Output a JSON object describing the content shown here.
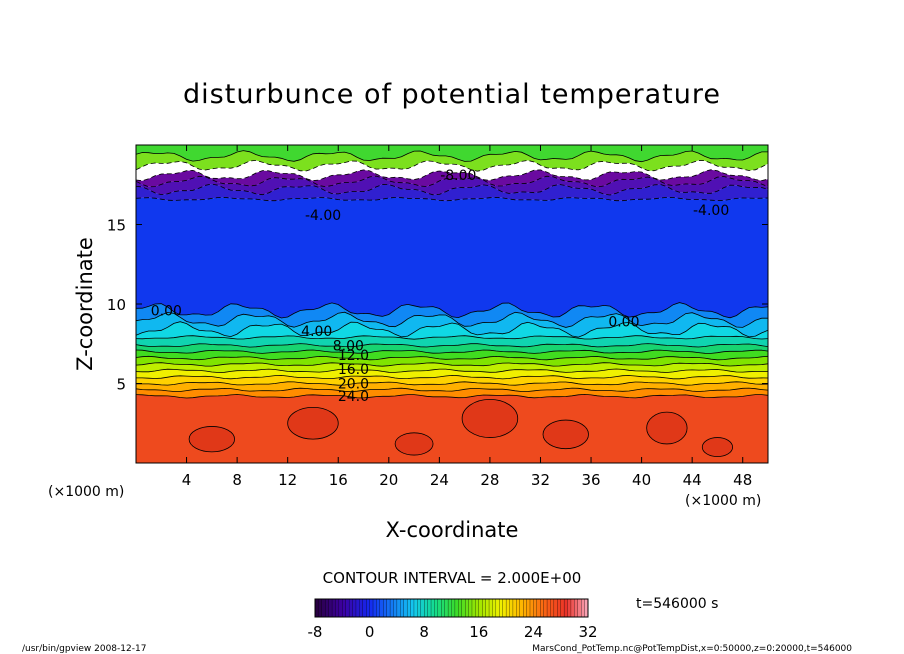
{
  "chart_data": {
    "type": "contour",
    "title": "disturbunce of potential temperature",
    "xlabel": "X-coordinate",
    "ylabel": "Z-coordinate",
    "x_unit_left": "(×1000 m)",
    "x_unit_right": "(×1000 m)",
    "xlim": [
      0,
      50
    ],
    "ylim": [
      0,
      20
    ],
    "x_ticks": [
      4,
      8,
      12,
      16,
      20,
      24,
      28,
      32,
      36,
      40,
      44,
      48
    ],
    "y_ticks": [
      5,
      10,
      15
    ],
    "contour_interval_text": "CONTOUR INTERVAL = 2.000E+00",
    "time_text": "t=546000 s",
    "colorbar": {
      "min": -8,
      "max": 32,
      "tick_labels": [
        -8,
        0,
        8,
        16,
        24,
        32
      ]
    },
    "layers": [
      {
        "z_bottom": 0.0,
        "z_top": 4.2,
        "value": 28,
        "color": "#ee4a1e"
      },
      {
        "z_bottom": 4.2,
        "z_top": 4.6,
        "value": 24,
        "color": "#ff8c00"
      },
      {
        "z_bottom": 4.6,
        "z_top": 5.0,
        "value": 22,
        "color": "#ffb000"
      },
      {
        "z_bottom": 5.0,
        "z_top": 5.4,
        "value": 20,
        "color": "#ffd200"
      },
      {
        "z_bottom": 5.4,
        "z_top": 5.8,
        "value": 18,
        "color": "#f0f000"
      },
      {
        "z_bottom": 5.8,
        "z_top": 6.2,
        "value": 16,
        "color": "#c0ee00"
      },
      {
        "z_bottom": 6.2,
        "z_top": 6.6,
        "value": 14,
        "color": "#80e400"
      },
      {
        "z_bottom": 6.6,
        "z_top": 7.0,
        "value": 12,
        "color": "#40dc20"
      },
      {
        "z_bottom": 7.0,
        "z_top": 7.4,
        "value": 10,
        "color": "#18d470"
      },
      {
        "z_bottom": 7.4,
        "z_top": 7.9,
        "value": 8,
        "color": "#10d4b0"
      },
      {
        "z_bottom": 7.9,
        "z_top": 8.4,
        "value": 6,
        "color": "#10d8e4"
      },
      {
        "z_bottom": 8.4,
        "z_top": 9.0,
        "value": 4,
        "color": "#10b8f0"
      },
      {
        "z_bottom": 9.0,
        "z_top": 9.6,
        "value": 2,
        "color": "#1088f4"
      },
      {
        "z_bottom": 9.6,
        "z_top": 16.6,
        "value": 0,
        "color": "#1038ee"
      },
      {
        "z_bottom": 16.6,
        "z_top": 17.2,
        "value": -2,
        "color": "#3020d0"
      },
      {
        "z_bottom": 17.2,
        "z_top": 17.7,
        "value": -4,
        "color": "#5010b4"
      },
      {
        "z_bottom": 17.7,
        "z_top": 18.1,
        "value": -6,
        "color": "#6a0aa0"
      },
      {
        "z_bottom": 18.1,
        "z_top": 18.7,
        "value": -8,
        "color": "#ffffff"
      },
      {
        "z_bottom": 18.7,
        "z_top": 19.3,
        "value": 14,
        "color": "#7ce01e"
      },
      {
        "z_bottom": 19.3,
        "z_top": 20.0,
        "value": 12,
        "color": "#40d830"
      }
    ],
    "contour_labels": [
      {
        "text": "-4.00",
        "x": 14.8,
        "z": 15.6
      },
      {
        "text": "-4.00",
        "x": 45.5,
        "z": 15.9
      },
      {
        "text": "0.00",
        "x": 2.4,
        "z": 9.6
      },
      {
        "text": "0.00",
        "x": 38.6,
        "z": 8.9
      },
      {
        "text": "4.00",
        "x": 14.3,
        "z": 8.3
      },
      {
        "text": "8.00",
        "x": 16.8,
        "z": 7.4
      },
      {
        "text": "12.0",
        "x": 17.2,
        "z": 6.8
      },
      {
        "text": "16.0",
        "x": 17.2,
        "z": 5.9
      },
      {
        "text": "20.0",
        "x": 17.2,
        "z": 5.0
      },
      {
        "text": "24.0",
        "x": 17.2,
        "z": 4.2
      },
      {
        "text": "-8.00",
        "x": 25.5,
        "z": 18.1
      }
    ]
  },
  "footer": {
    "left": "/usr/bin/gpview  2008-12-17",
    "right": "MarsCond_PotTemp.nc@PotTempDist,x=0:50000,z=0:20000,t=546000"
  }
}
